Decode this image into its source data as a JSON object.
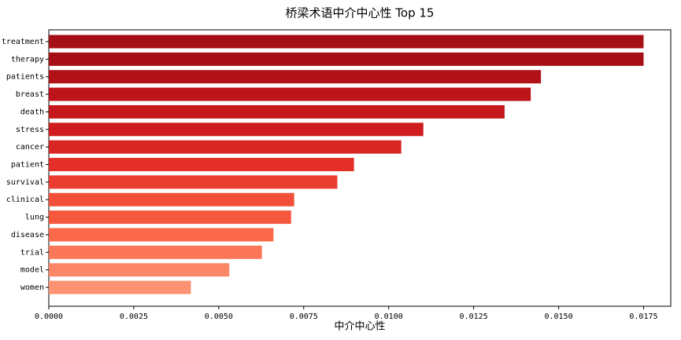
{
  "chart_data": {
    "type": "barh",
    "title": "桥梁术语中介中心性 Top 15",
    "x_label": "中介中心性",
    "categories": [
      "treatment",
      "therapy",
      "patients",
      "breast",
      "death",
      "stress",
      "cancer",
      "patient",
      "survival",
      "clinical",
      "lung",
      "disease",
      "trial",
      "model",
      "women"
    ],
    "values": [
      0.0175,
      0.0175,
      0.01448,
      0.01418,
      0.01341,
      0.01102,
      0.01037,
      0.00898,
      0.00849,
      0.00722,
      0.00713,
      0.00661,
      0.00627,
      0.00531,
      0.00418
    ],
    "colors": [
      "#a50f15",
      "#a50f15",
      "#b11218",
      "#bc141a",
      "#c5171c",
      "#cf1c1f",
      "#d72623",
      "#e32f27",
      "#ea3c2f",
      "#f14f39",
      "#f6583e",
      "#fb694a",
      "#fb7757",
      "#fc8767",
      "#fc9272"
    ],
    "xlim": [
      0,
      0.0183
    ],
    "xticks": [
      {
        "value": 0,
        "label": "0.0000"
      },
      {
        "value": 0.0025,
        "label": "0.0025"
      },
      {
        "value": 0.005,
        "label": "0.0050"
      },
      {
        "value": 0.0075,
        "label": "0.0075"
      },
      {
        "value": 0.01,
        "label": "0.0100"
      },
      {
        "value": 0.0125,
        "label": "0.0125"
      },
      {
        "value": 0.015,
        "label": "0.0150"
      },
      {
        "value": 0.0175,
        "label": "0.0175"
      }
    ]
  }
}
